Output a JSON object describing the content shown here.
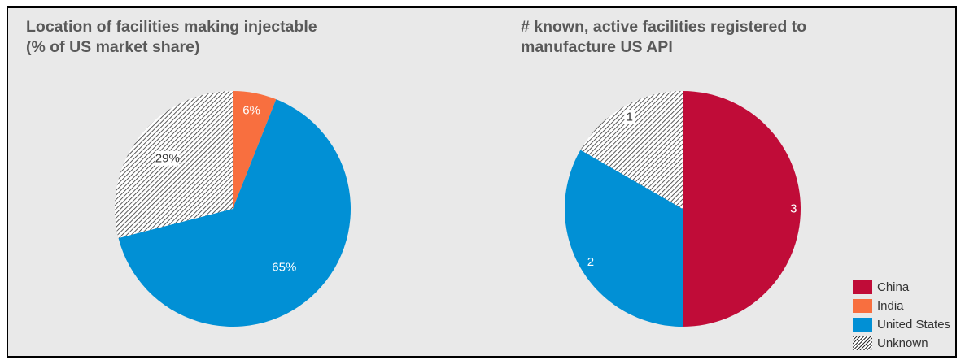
{
  "colors": {
    "China": "#c00c38",
    "India": "#f86f3f",
    "United States": "#0190d5",
    "Unknown": "hatch"
  },
  "chart_data": [
    {
      "type": "pie",
      "title": "Location of facilities making injectable (% of US market share)",
      "title_lines": [
        "Location of facilities making injectable",
        "(% of US market share)"
      ],
      "slices": [
        {
          "category": "India",
          "value": 6,
          "label": "6%"
        },
        {
          "category": "United States",
          "value": 65,
          "label": "65%"
        },
        {
          "category": "Unknown",
          "value": 29,
          "label": "29%"
        }
      ]
    },
    {
      "type": "pie",
      "title": "# known, active facilities registered to manufacture US API",
      "title_lines": [
        "# known, active facilities registered to",
        "manufacture US API"
      ],
      "slices": [
        {
          "category": "China",
          "value": 3,
          "label": "3"
        },
        {
          "category": "United States",
          "value": 2,
          "label": "2"
        },
        {
          "category": "Unknown",
          "value": 1,
          "label": "1"
        }
      ],
      "legend": {
        "position": "bottom-right",
        "items": [
          "China",
          "India",
          "United States",
          "Unknown"
        ]
      }
    }
  ]
}
